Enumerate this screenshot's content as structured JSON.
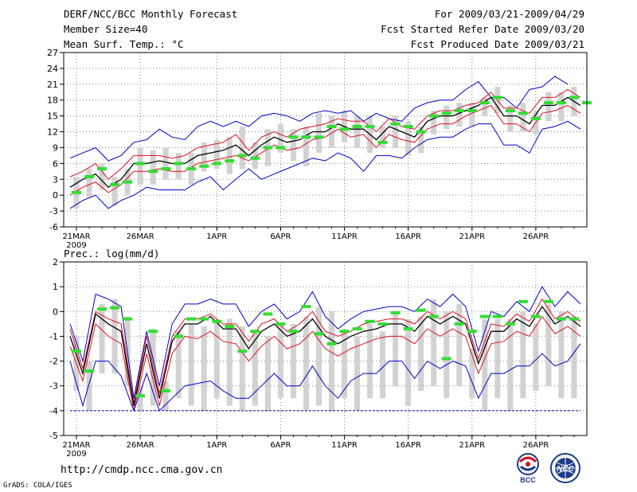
{
  "header": {
    "title": "DERF/NCC/BCC Monthly Forecast",
    "member_size": "Member Size=40",
    "variable": "Mean Surf. Temp.: °C",
    "period": "For 2009/03/21-2009/04/29",
    "started": "Fcst Started Refer Date 2009/03/20",
    "produced": "Fcst Produced Date 2009/03/21"
  },
  "footer": {
    "url": "http://cmdp.ncc.cma.gov.cn",
    "credit": "GrADS: COLA/IGES",
    "logo_bcc_text": "BCC",
    "logo_ncc_text": "NCC"
  },
  "colors": {
    "frame": "#000000",
    "grid": "#7f7f7f",
    "box": "#d2d2d2",
    "median": "#33dd33",
    "mean": "#000000",
    "std": "#dd1020",
    "envelope": "#0000cc",
    "baseline": "#0000aa"
  },
  "chart_data": [
    {
      "type": "line",
      "title": "Mean Surf. Temp.: °C",
      "x_tick_labels": [
        "21MAR",
        "26MAR",
        "1APR",
        "6APR",
        "11APR",
        "16APR",
        "21APR",
        "26APR"
      ],
      "x_tick_index": [
        0,
        5,
        11,
        16,
        21,
        26,
        31,
        36
      ],
      "x_year_label": "2009",
      "days": 40,
      "ylim": [
        -6,
        27
      ],
      "y_ticks": [
        -6,
        -3,
        0,
        3,
        6,
        9,
        12,
        15,
        18,
        21,
        24,
        27
      ],
      "series": [
        {
          "name": "max",
          "values": [
            7,
            8,
            9,
            6.5,
            7.5,
            10,
            10.5,
            12.5,
            11,
            10.5,
            13,
            14,
            13,
            14,
            13,
            15,
            15.5,
            15,
            14,
            15.5,
            16,
            15.5,
            16,
            14,
            15.5,
            14.5,
            14,
            16.5,
            17.5,
            18,
            18,
            20,
            21.5,
            18.5,
            18.5,
            16.5,
            20,
            20.5,
            22.5,
            21
          ]
        },
        {
          "name": "upper",
          "values": [
            3.5,
            4.5,
            6,
            3,
            5,
            7.5,
            7.5,
            7.5,
            7,
            7.5,
            9,
            9.5,
            10,
            11.5,
            8.5,
            11,
            12,
            11,
            12.5,
            13,
            13.5,
            14.5,
            14,
            14,
            12,
            14.5,
            13,
            12.5,
            15,
            16,
            16,
            17,
            17.5,
            19.5,
            16.5,
            16.5,
            15.5,
            18.5,
            18.5,
            20,
            18.5
          ]
        },
        {
          "name": "mean",
          "values": [
            1.5,
            3,
            4,
            1.5,
            3,
            6,
            6,
            6.5,
            6,
            6,
            7.5,
            8,
            8.5,
            9.5,
            7.5,
            9.5,
            11,
            10,
            10.5,
            12,
            12,
            13.5,
            12.5,
            12.5,
            10.5,
            13,
            12,
            11,
            14,
            15,
            15,
            16,
            17,
            18.5,
            15,
            15,
            13.5,
            17,
            17,
            18.5,
            17
          ]
        },
        {
          "name": "lower",
          "values": [
            0,
            1.5,
            2.5,
            0.5,
            2,
            4.5,
            4.5,
            5,
            4.5,
            4.5,
            6,
            6.5,
            7,
            7.5,
            6.5,
            8,
            9.5,
            8.5,
            9,
            10.5,
            11,
            12.5,
            11,
            11.5,
            9,
            11.5,
            10.5,
            10,
            12.5,
            13.5,
            13.5,
            15,
            16,
            17,
            13.5,
            13.5,
            12,
            15.5,
            16,
            17,
            15.5
          ]
        },
        {
          "name": "min",
          "values": [
            -2.5,
            -1,
            0,
            -2.5,
            -1,
            0,
            1.5,
            1,
            1,
            1,
            2.5,
            3.5,
            1,
            3,
            5,
            3,
            4,
            5,
            6,
            7,
            6.5,
            8,
            7,
            4.5,
            7.5,
            7.5,
            7,
            9,
            10.5,
            11,
            11,
            12.5,
            13.5,
            13.5,
            9.5,
            9.5,
            8,
            12.5,
            13,
            14,
            12.5
          ]
        }
      ],
      "box_lo": [
        -2.5,
        -0.5,
        1,
        -2,
        0,
        2,
        2,
        3,
        3,
        2,
        4.5,
        5,
        4,
        5,
        5,
        5.5,
        8,
        6.5,
        5.5,
        8,
        9,
        10,
        9,
        8,
        9,
        9,
        7.5,
        8,
        11.5,
        12.5,
        13,
        13,
        15,
        15.5,
        12,
        12,
        11.5,
        14,
        14,
        15
      ],
      "box_hi": [
        3.5,
        5,
        6,
        3.5,
        5,
        9,
        8.5,
        9,
        8,
        8,
        10,
        10.5,
        11,
        13,
        10,
        12.5,
        13.5,
        12.5,
        13,
        15.5,
        15,
        16,
        15,
        15,
        13,
        15,
        14,
        13,
        16,
        17,
        17.5,
        17.5,
        18.5,
        20.5,
        17,
        17.5,
        16,
        19.5,
        19.5,
        20.5
      ],
      "median": [
        0.5,
        3.5,
        5,
        2,
        2.5,
        6,
        4.5,
        5,
        6,
        5,
        5.5,
        6,
        6.5,
        7.5,
        7,
        9,
        9,
        11,
        11,
        11,
        13,
        12.5,
        13,
        13,
        10,
        13.5,
        13,
        12,
        15,
        15.5,
        16,
        16,
        17.5,
        18.5,
        16,
        15.5,
        14.5,
        17.5,
        17.5,
        18.5,
        17.5
      ]
    },
    {
      "type": "line",
      "title": "Prec.: log(mm/d)",
      "x_tick_labels": [
        "21MAR",
        "26MAR",
        "1APR",
        "6APR",
        "11APR",
        "16APR",
        "21APR",
        "26APR"
      ],
      "x_tick_index": [
        0,
        5,
        11,
        16,
        21,
        26,
        31,
        36
      ],
      "x_year_label": "2009",
      "days": 40,
      "ylim": [
        -5,
        2
      ],
      "y_ticks": [
        -5,
        -4,
        -3,
        -2,
        -1,
        0,
        1,
        2
      ],
      "baseline": -4,
      "series": [
        {
          "name": "max",
          "values": [
            -0.5,
            -2,
            0.7,
            0.5,
            0.2,
            -3.5,
            -0.8,
            -3,
            -0.5,
            0.3,
            0.3,
            0.5,
            0.3,
            0.3,
            -0.6,
            0,
            0.3,
            -0.3,
            0,
            0.8,
            -0.2,
            -0.7,
            -0.3,
            0,
            0.1,
            0.2,
            0.2,
            0,
            0.5,
            0.2,
            0.7,
            0.2,
            -1.6,
            0,
            -0.2,
            0.4,
            0,
            1,
            0.2,
            0.8,
            0.3
          ]
        },
        {
          "name": "upper",
          "values": [
            -0.7,
            -2.3,
            0,
            -0.3,
            -0.5,
            -3.7,
            -1,
            -3.3,
            -1,
            -0.3,
            -0.3,
            -0.1,
            -0.5,
            -0.5,
            -1.2,
            -0.5,
            -0.3,
            -0.8,
            -0.5,
            0,
            -0.8,
            -1,
            -0.8,
            -0.5,
            -0.4,
            -0.3,
            -0.3,
            -0.5,
            0,
            -0.3,
            0,
            -0.3,
            -1.9,
            -0.5,
            -0.6,
            -0.1,
            -0.4,
            0.5,
            -0.3,
            0,
            -0.4
          ]
        },
        {
          "name": "mean",
          "values": [
            -1,
            -2.5,
            -0.1,
            -0.5,
            -0.8,
            -3.8,
            -1.3,
            -3.5,
            -1.2,
            -0.5,
            -0.5,
            -0.2,
            -0.7,
            -0.7,
            -1.5,
            -0.8,
            -0.5,
            -1,
            -0.8,
            -0.3,
            -1,
            -1.3,
            -1,
            -0.8,
            -0.7,
            -0.5,
            -0.5,
            -0.8,
            -0.2,
            -0.5,
            -0.2,
            -0.5,
            -2.1,
            -0.8,
            -0.8,
            -0.3,
            -0.6,
            0.2,
            -0.5,
            -0.2,
            -0.6
          ]
        },
        {
          "name": "lower",
          "values": [
            -1.4,
            -2.8,
            -0.5,
            -1,
            -1.3,
            -4,
            -1.7,
            -3.8,
            -1.7,
            -1,
            -1.1,
            -0.8,
            -1.2,
            -1.3,
            -2,
            -1.4,
            -1,
            -1.5,
            -1.3,
            -0.8,
            -1.5,
            -1.8,
            -1.5,
            -1.3,
            -1.1,
            -1,
            -1,
            -1.3,
            -0.7,
            -1,
            -0.7,
            -1,
            -2.5,
            -1.3,
            -1.2,
            -0.8,
            -1,
            -0.2,
            -0.9,
            -0.6,
            -1
          ]
        },
        {
          "name": "min",
          "values": [
            -2,
            -3.8,
            -2,
            -2,
            -2.6,
            -4,
            -2.5,
            -4,
            -3.5,
            -3,
            -2.9,
            -2.8,
            -3.2,
            -3.5,
            -3.5,
            -3,
            -2.5,
            -3,
            -3,
            -2.2,
            -3,
            -3.5,
            -2.8,
            -2.5,
            -2.5,
            -2,
            -2,
            -2.7,
            -2,
            -2.3,
            -2,
            -2.2,
            -3.5,
            -2.5,
            -2.5,
            -2.2,
            -2.2,
            -1.7,
            -2.2,
            -2,
            -1.3
          ]
        },
        {
          "name": "zero",
          "values": [
            -4,
            -4,
            -4,
            -4,
            -4,
            -4,
            -4,
            -4,
            -4,
            -4,
            -4,
            -4,
            -4,
            -4,
            -4,
            -4,
            -4,
            -4,
            -4,
            -4,
            -4,
            -4,
            -4,
            -4,
            -4,
            -4,
            -4,
            -4,
            -4,
            -4,
            -4,
            -4,
            -4,
            -4,
            -4,
            -4,
            -4,
            -4,
            -4,
            -4,
            -4
          ]
        }
      ],
      "box_lo": [
        -3.2,
        -4,
        -2.5,
        -2.5,
        -3,
        -4,
        -3.8,
        -4,
        -3.5,
        -3.8,
        -4,
        -3.5,
        -3.8,
        -4,
        -3.8,
        -4,
        -3.5,
        -3.5,
        -4,
        -3.8,
        -4,
        -3.5,
        -4,
        -3.5,
        -3.5,
        -3,
        -3.8,
        -3.2,
        -3,
        -3.5,
        -3,
        -3.5,
        -4,
        -3.5,
        -4,
        -3.5,
        -3.2,
        -3,
        -3.5,
        -3.5
      ],
      "box_hi": [
        -1,
        -2,
        0.3,
        0.5,
        -0.2,
        -3,
        -0.7,
        -2.8,
        -0.8,
        -0.5,
        -0.6,
        -0.4,
        -0.3,
        -0.6,
        -0.8,
        -1,
        -0.5,
        -0.5,
        -0.2,
        0.2,
        0,
        -0.8,
        -1,
        -0.5,
        -0.8,
        0,
        -0.3,
        -0.2,
        0.5,
        0,
        0.3,
        -1.5,
        -0.3,
        -0.3,
        -0.3,
        0,
        -0.5,
        0.3,
        0,
        -0.2
      ],
      "median": [
        -1.6,
        -2.4,
        0.1,
        0.15,
        -0.3,
        -3.4,
        -0.8,
        -3.2,
        -1,
        -0.3,
        -0.3,
        -0.4,
        -0.6,
        -1.6,
        -0.8,
        -0.1,
        -0.5,
        -0.8,
        0.2,
        -0.9,
        -1.3,
        -0.8,
        -0.7,
        -0.4,
        -0.5,
        -0.05,
        -0.7,
        0.05,
        -0.2,
        -1.9,
        -0.5,
        -0.8,
        -0.2,
        -0.2,
        -0.5,
        0.4,
        -0.2,
        0.4,
        -0.3,
        -0.3
      ]
    }
  ]
}
